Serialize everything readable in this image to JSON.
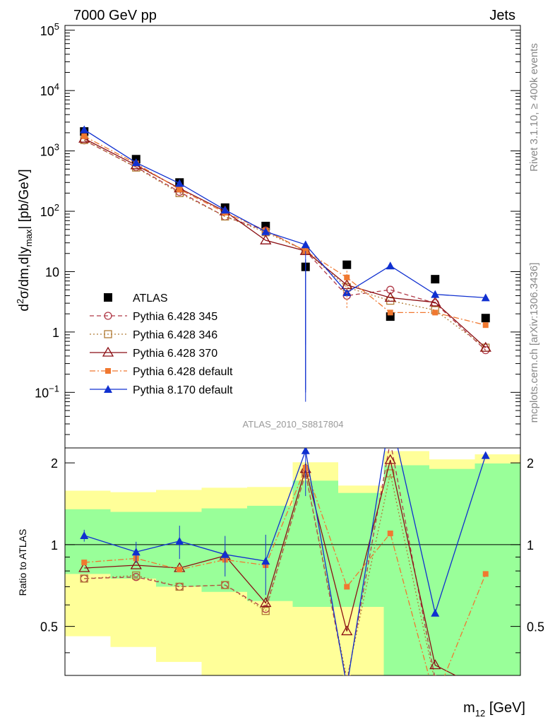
{
  "header": {
    "left": "7000 GeV pp",
    "right": "Jets"
  },
  "side_labels": {
    "rivet": "Rivet 3.1.10, ≥ 400k events",
    "mcplots": "mcplots.cern.ch [arXiv:1306.3436]"
  },
  "analysis_id": "ATLAS_2010_S8817804",
  "axes": {
    "main_ylabel": "d²σ/dm,d|y_max| [pb/GeV]",
    "ratio_ylabel": "Ratio to ATLAS",
    "xlabel": "m₁₂ [GeV]"
  },
  "colors": {
    "atlas": "#000000",
    "p345": "#b03a48",
    "p346": "#b07b35",
    "p370": "#8b0f14",
    "pdef": "#f07830",
    "p8": "#1030d0",
    "band_yellow": "#ffff99",
    "band_green": "#99ff99"
  },
  "chart_data": {
    "type": "scatter",
    "yscale": "log",
    "ylim": [
      0.012,
      120000
    ],
    "ratio_ylim": [
      0.33,
      2.27
    ],
    "main_ticks": [
      "10^5",
      "10^4",
      "10^3",
      "10^2",
      "10",
      "1",
      "10^-1"
    ],
    "ratio_ticks": [
      "2",
      "1",
      "0.5"
    ],
    "x": [
      1,
      2,
      3,
      4,
      5,
      6,
      7,
      8,
      9,
      10
    ],
    "series": [
      {
        "name": "ATLAS",
        "key": "atlas",
        "marker": "square-filled",
        "line": "none",
        "values": [
          2100,
          730,
          300,
          115,
          57,
          12,
          13,
          1.8,
          7.5,
          1.7
        ],
        "ratio": [
          1,
          1,
          1,
          1,
          1,
          1,
          1,
          1,
          1,
          1
        ]
      },
      {
        "name": "Pythia 6.428 345",
        "key": "p345",
        "marker": "circle-open",
        "line": "dashed",
        "values": [
          1500,
          540,
          210,
          82,
          48,
          22,
          4.0,
          5.0,
          3.0,
          0.5
        ],
        "ratio": [
          0.75,
          0.76,
          0.7,
          0.71,
          0.58,
          1.83,
          0.31,
          2.4,
          0.32,
          0.26
        ]
      },
      {
        "name": "Pythia 6.428 346",
        "key": "p346",
        "marker": "square-open",
        "line": "dotted",
        "values": [
          1520,
          530,
          200,
          82,
          45,
          22,
          5.5,
          3.3,
          2.3,
          0.55
        ],
        "ratio": [
          0.75,
          0.77,
          0.7,
          0.71,
          0.57,
          1.84,
          0.32,
          1.83,
          0.31,
          0.26
        ]
      },
      {
        "name": "Pythia 6.428 370",
        "key": "p370",
        "marker": "triangle-open",
        "line": "solid",
        "values": [
          1600,
          580,
          240,
          100,
          33,
          22,
          6.0,
          3.7,
          3.1,
          0.55
        ],
        "ratio": [
          0.82,
          0.84,
          0.82,
          0.91,
          0.61,
          1.9,
          0.48,
          2.05,
          0.36,
          0.29
        ]
      },
      {
        "name": "Pythia 6.428 default",
        "key": "pdef",
        "marker": "square-filled-small",
        "line": "dashdot",
        "values": [
          1750,
          620,
          230,
          95,
          48,
          22,
          8.0,
          2.1,
          2.1,
          1.3
        ],
        "ratio": [
          0.86,
          0.89,
          0.81,
          0.88,
          0.84,
          1.92,
          0.7,
          1.1,
          0.27,
          0.78
        ]
      },
      {
        "name": "Pythia 8.170 default",
        "key": "p8",
        "marker": "triangle-filled",
        "line": "solid",
        "values": [
          2250,
          640,
          290,
          105,
          46,
          28,
          4.5,
          12.5,
          4.2,
          3.7
        ],
        "ratio": [
          1.08,
          0.94,
          1.03,
          0.92,
          0.87,
          2.22,
          0.3,
          3.0,
          0.56,
          2.13
        ]
      }
    ],
    "errors": {
      "p8_main": [
        [
          2.8,
          1.22,
          0.22
        ],
        [
          7.0,
          2.0,
          0.01
        ],
        [
          10,
          1.6,
          0.01
        ],
        [
          11,
          2.0,
          0.01
        ]
      ],
      "pdef_main": [
        [
          8,
          0.87,
          0.3
        ]
      ],
      "p8_ratio": [
        [
          1,
          0.05
        ],
        [
          2,
          0.09
        ],
        [
          3,
          0.14
        ],
        [
          4,
          0.17
        ],
        [
          5,
          0.25
        ],
        [
          6,
          0.32
        ]
      ]
    },
    "bands": {
      "edges": [
        0.5,
        1.5,
        2.5,
        3.5,
        4.5,
        5.5,
        6.5,
        7.5,
        8.5,
        9.5,
        10.5
      ],
      "yellow": [
        [
          0.46,
          1.58
        ],
        [
          0.42,
          1.56
        ],
        [
          0.37,
          1.59
        ],
        [
          0.33,
          1.62
        ],
        [
          0.33,
          1.63
        ],
        [
          0.33,
          2.01
        ],
        [
          0.33,
          1.65
        ],
        [
          0.33,
          2.21
        ],
        [
          0.34,
          2.06
        ],
        [
          0.33,
          2.15
        ]
      ],
      "green": [
        [
          0.78,
          1.35
        ],
        [
          0.75,
          1.32
        ],
        [
          0.7,
          1.32
        ],
        [
          0.67,
          1.36
        ],
        [
          0.62,
          1.39
        ],
        [
          0.59,
          1.72
        ],
        [
          0.59,
          1.55
        ],
        [
          0.33,
          1.96
        ],
        [
          0.33,
          1.9
        ],
        [
          0.33,
          1.99
        ]
      ]
    }
  }
}
